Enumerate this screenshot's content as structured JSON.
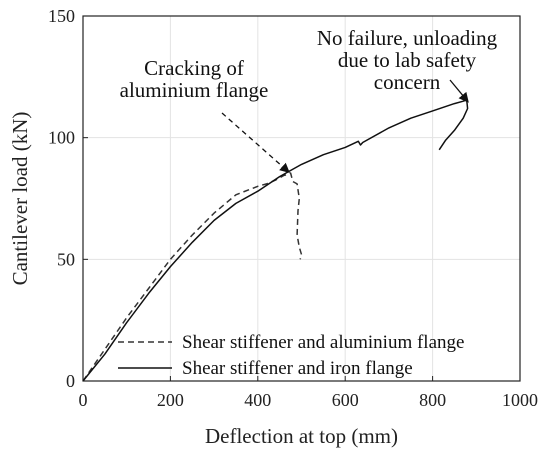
{
  "chart_data": {
    "type": "line",
    "xlabel": "Deflection at top (mm)",
    "ylabel": "Cantilever load (kN)",
    "xlim": [
      0,
      1000
    ],
    "ylim": [
      0,
      150
    ],
    "xticks": [
      0,
      200,
      400,
      600,
      800,
      1000
    ],
    "yticks": [
      0,
      50,
      100,
      150
    ],
    "xtick_labels": [
      "0",
      "200",
      "400",
      "600",
      "800",
      "1000"
    ],
    "ytick_labels": [
      "0",
      "50",
      "100",
      "150"
    ],
    "grid": true,
    "legend_position": "bottom-right",
    "series": [
      {
        "name": "Shear stiffener and aluminium flange",
        "style": "dashed",
        "color": "#333333",
        "x": [
          0,
          50,
          100,
          150,
          200,
          250,
          300,
          350,
          400,
          420,
          440,
          460,
          470,
          475,
          480,
          490,
          495,
          492,
          490,
          495,
          500,
          497
        ],
        "y": [
          0,
          13,
          26,
          38,
          50,
          60,
          69,
          76.5,
          80,
          81,
          82.5,
          84.5,
          85,
          85.5,
          82,
          81,
          75,
          70,
          60,
          55,
          52,
          50
        ]
      },
      {
        "name": "Shear stiffener and iron flange",
        "style": "solid",
        "color": "#111111",
        "x": [
          0,
          50,
          100,
          150,
          200,
          250,
          300,
          350,
          400,
          450,
          500,
          550,
          600,
          630,
          635,
          640,
          700,
          750,
          800,
          850,
          870,
          878,
          880,
          870,
          850,
          830,
          815
        ],
        "y": [
          0,
          11,
          24,
          36,
          47,
          57,
          66,
          73,
          78,
          84,
          89,
          93,
          96,
          98.5,
          97,
          98,
          104,
          108,
          111,
          114,
          115,
          115.5,
          112,
          108,
          103,
          99,
          95
        ]
      }
    ],
    "annotations": [
      {
        "lines": [
          "Cracking of",
          "aluminium flange"
        ],
        "arrow_to": [
          470,
          86
        ]
      },
      {
        "lines": [
          "No failure, unloading",
          "due to lab safety",
          "concern"
        ],
        "arrow_to": [
          880,
          115
        ]
      }
    ]
  }
}
